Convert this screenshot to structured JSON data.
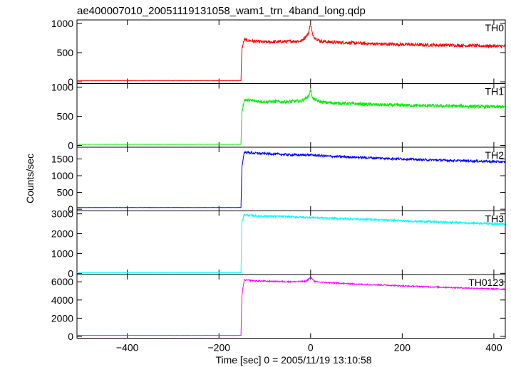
{
  "chart_data": {
    "type": "line",
    "title": "ae400007010_20051119131058_wam1_trn_4band_long.qdp",
    "xlabel": "Time [sec] 0 = 2005/11/19 13:10:58",
    "ylabel": "Counts/sec",
    "xlim": [
      -510,
      425
    ],
    "xticks": [
      -400,
      -200,
      0,
      200,
      400
    ],
    "grid": false,
    "panels": [
      {
        "name": "TH0",
        "color": "#ff0000",
        "ylim": [
          -30,
          1060
        ],
        "yticks": [
          0,
          500,
          1000
        ],
        "series": {
          "x": [
            -510,
            -152,
            -150,
            -145,
            -120,
            -100,
            -50,
            -20,
            -5,
            0,
            5,
            20,
            40,
            80,
            120,
            160,
            200,
            260,
            320,
            380,
            420
          ],
          "y": [
            20,
            20,
            560,
            720,
            690,
            680,
            690,
            700,
            820,
            990,
            780,
            700,
            680,
            670,
            655,
            645,
            640,
            630,
            625,
            615,
            610
          ]
        },
        "noise": 28
      },
      {
        "name": "TH1",
        "color": "#00ee00",
        "ylim": [
          -30,
          1060
        ],
        "yticks": [
          0,
          500,
          1000
        ],
        "series": {
          "x": [
            -510,
            -152,
            -150,
            -145,
            -120,
            -100,
            -50,
            -20,
            -5,
            0,
            5,
            20,
            40,
            80,
            120,
            160,
            200,
            260,
            320,
            380,
            420
          ],
          "y": [
            20,
            20,
            560,
            780,
            760,
            750,
            750,
            760,
            840,
            950,
            800,
            750,
            730,
            720,
            705,
            695,
            690,
            680,
            675,
            665,
            660
          ]
        },
        "noise": 28
      },
      {
        "name": "TH2",
        "color": "#0000ff",
        "ylim": [
          -50,
          1850
        ],
        "yticks": [
          0,
          500,
          1000,
          1500
        ],
        "series": {
          "x": [
            -510,
            -152,
            -150,
            -145,
            -120,
            -80,
            -40,
            0,
            40,
            80,
            120,
            160,
            200,
            260,
            320,
            380,
            420
          ],
          "y": [
            50,
            50,
            1250,
            1700,
            1670,
            1650,
            1620,
            1620,
            1580,
            1560,
            1540,
            1520,
            1500,
            1470,
            1450,
            1430,
            1410
          ]
        },
        "noise": 35
      },
      {
        "name": "TH3",
        "color": "#00ffff",
        "ylim": [
          -60,
          3150
        ],
        "yticks": [
          0,
          1000,
          2000,
          3000
        ],
        "series": {
          "x": [
            -510,
            -152,
            -150,
            -145,
            -120,
            -80,
            -40,
            0,
            40,
            80,
            120,
            160,
            200,
            260,
            320,
            380,
            420
          ],
          "y": [
            30,
            30,
            2600,
            2950,
            2900,
            2880,
            2850,
            2820,
            2780,
            2750,
            2720,
            2690,
            2650,
            2600,
            2560,
            2520,
            2480
          ]
        },
        "noise": 50
      },
      {
        "name": "TH0123",
        "color": "#ff00ff",
        "ylim": [
          -200,
          6800
        ],
        "yticks": [
          0,
          2000,
          4000,
          6000
        ],
        "series": {
          "x": [
            -510,
            -152,
            -150,
            -145,
            -120,
            -80,
            -40,
            -10,
            0,
            10,
            40,
            80,
            120,
            160,
            200,
            260,
            320,
            380,
            420
          ],
          "y": [
            100,
            100,
            4500,
            6200,
            6100,
            6050,
            6000,
            6050,
            6500,
            6000,
            5900,
            5800,
            5700,
            5650,
            5550,
            5450,
            5350,
            5250,
            5200
          ]
        },
        "noise": 70
      }
    ]
  }
}
